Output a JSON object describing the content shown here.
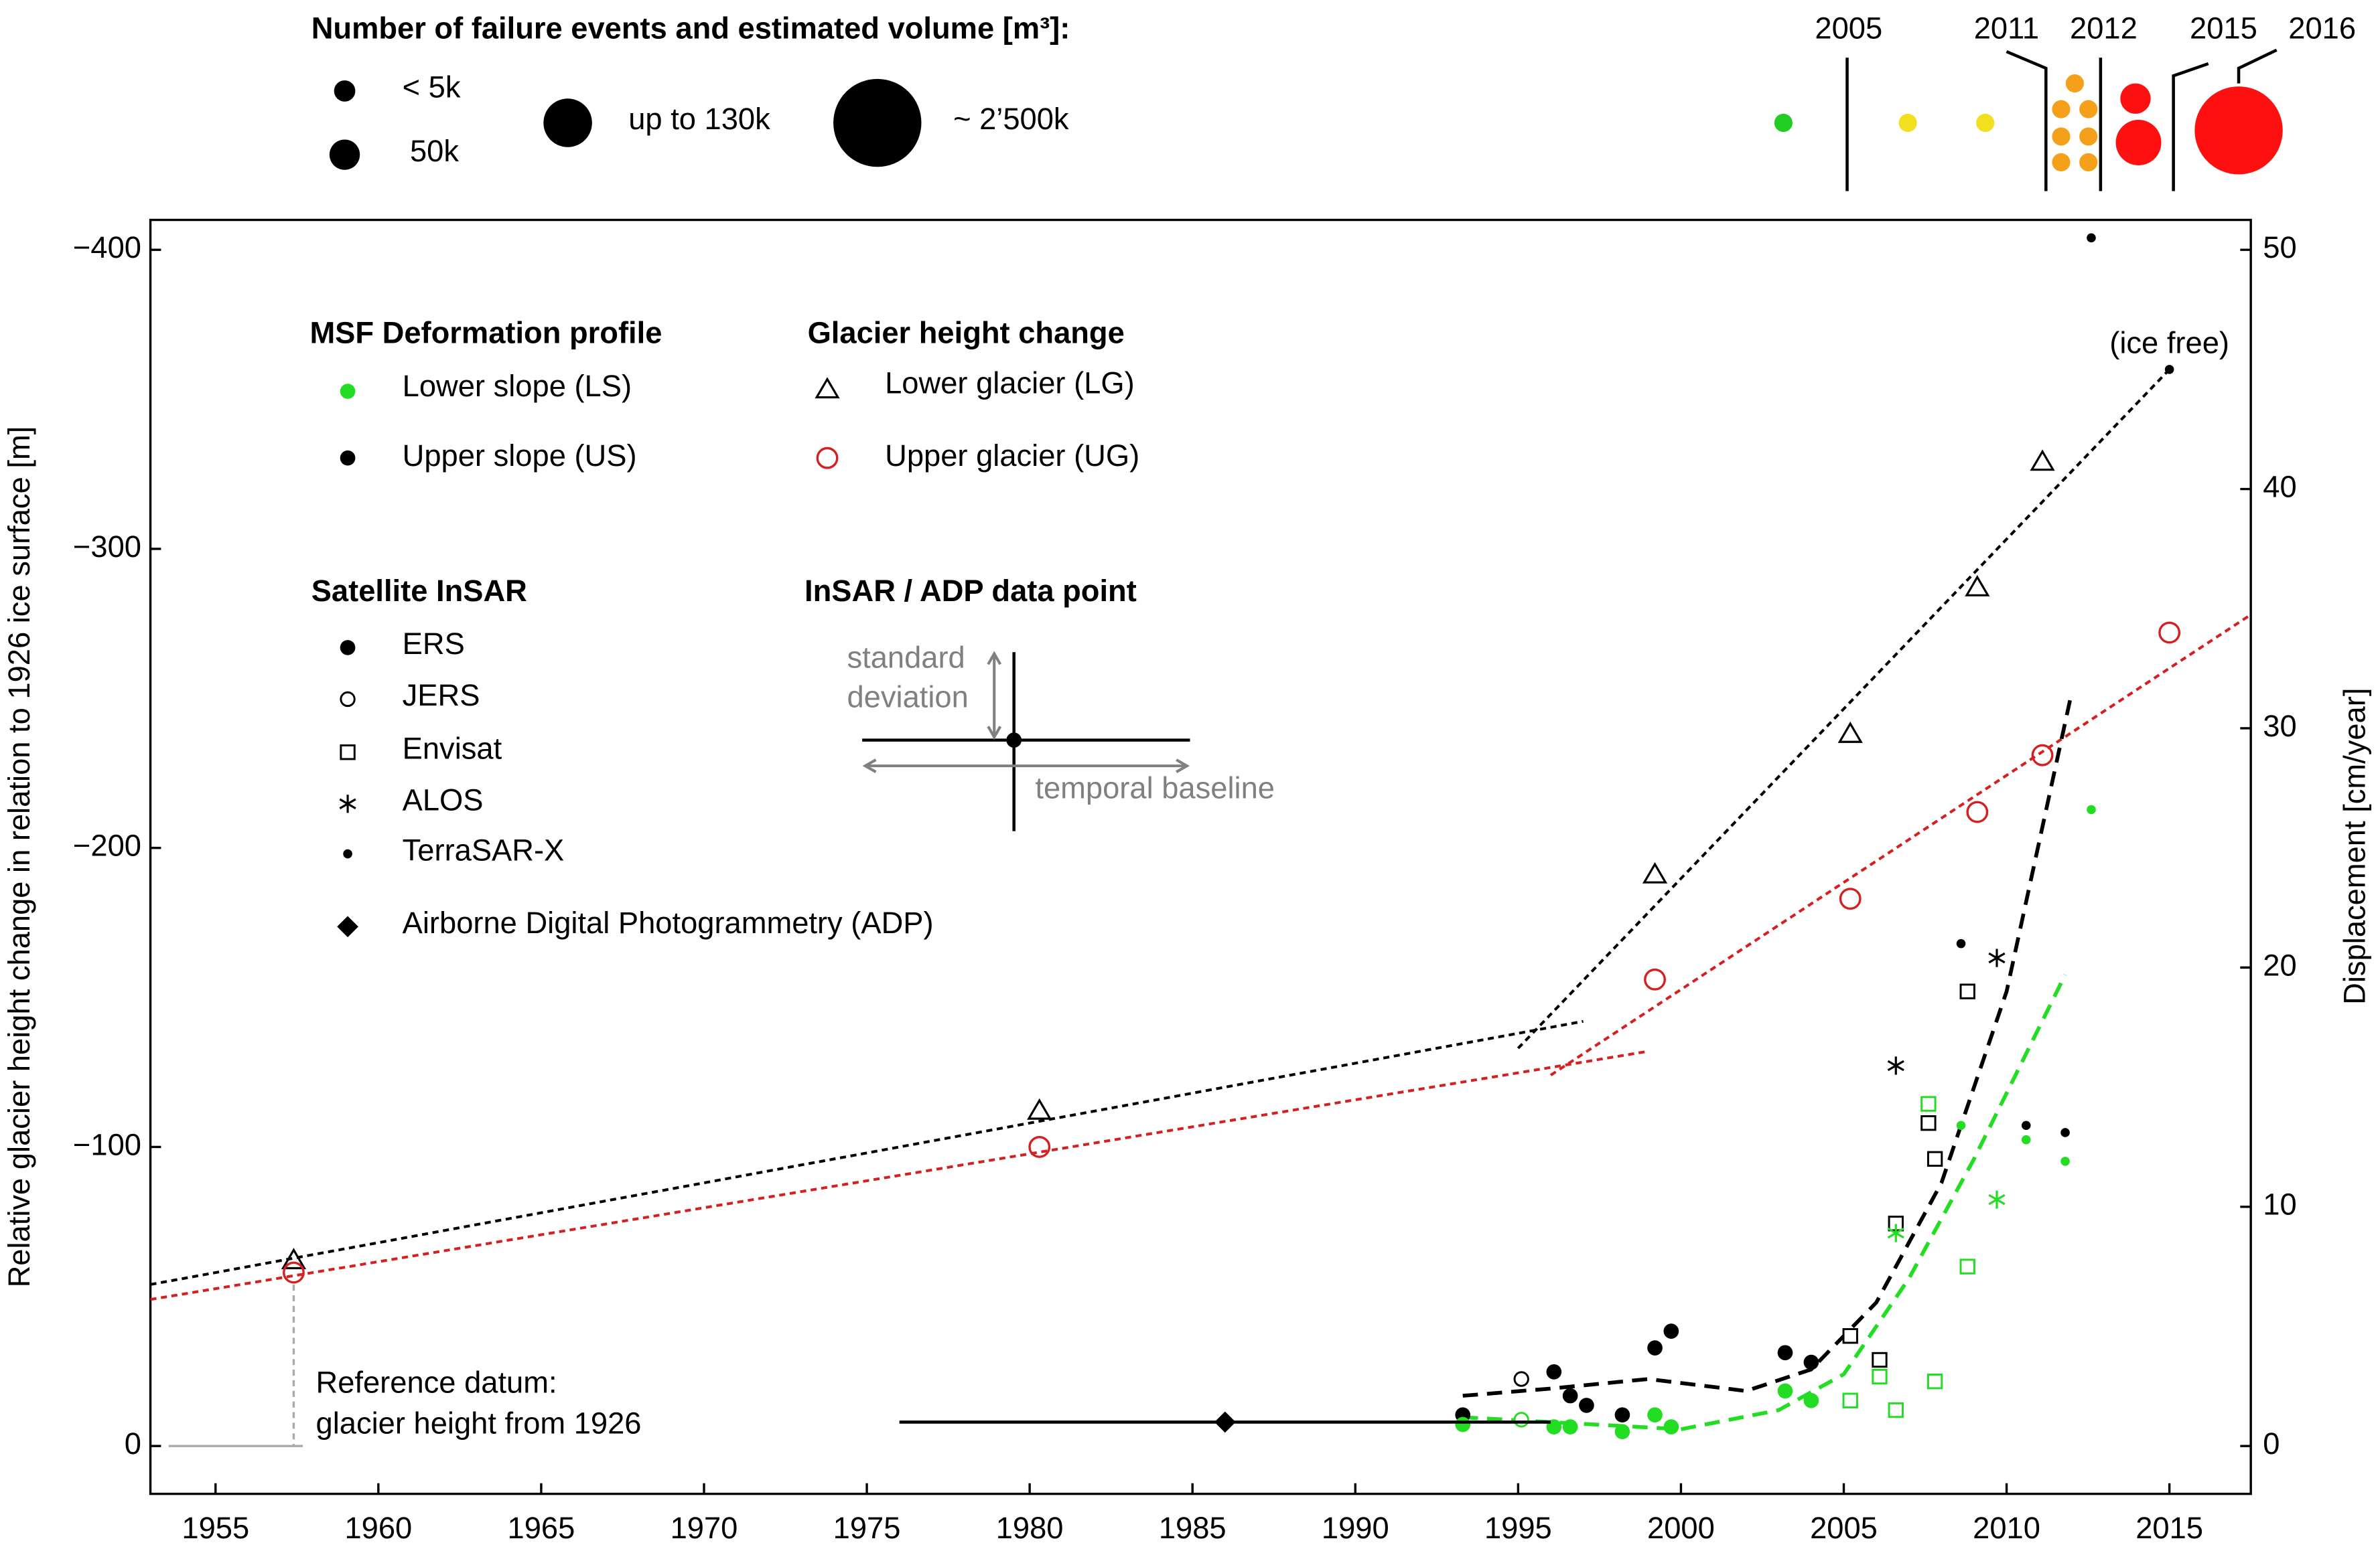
{
  "chart_data": {
    "type": "scatter",
    "ylabel": "Relative glacier height change in relation to 1926 ice surface [m]",
    "y2label": "Displacement [cm/year]",
    "xlim": [
      1953,
      2017.5
    ],
    "xticks": [
      1955,
      1960,
      1965,
      1970,
      1975,
      1980,
      1985,
      1990,
      1995,
      2000,
      2005,
      2010,
      2015
    ],
    "ylim": [
      16,
      -410
    ],
    "yticks": [
      0,
      {
        "value": -100,
        "label": "−100"
      },
      {
        "value": -200,
        "label": "−200"
      },
      {
        "value": -300,
        "label": "−300"
      },
      {
        "value": -400,
        "label": "−400"
      }
    ],
    "y2lim": [
      -2,
      51.25
    ],
    "y2ticks": [
      0,
      10,
      20,
      30,
      40,
      50
    ],
    "series": [
      {
        "marker": "triangle-open",
        "color": "#000000",
        "axis": "y",
        "x": [
          1957.4,
          1980.3,
          1999.2,
          2005.2,
          2009.1,
          2011.1
        ],
        "values": [
          -62,
          -112,
          -191,
          -238,
          -287,
          -329
        ]
      },
      {
        "marker": "circle-open-large",
        "color": "#d42020",
        "axis": "y",
        "x": [
          1957.4,
          1980.3,
          1999.2,
          2005.2,
          2009.1,
          2011.1,
          2015
        ],
        "values": [
          -58,
          -100,
          -156,
          -183,
          -212,
          -231,
          -272
        ]
      },
      {
        "marker": "dot",
        "color": "#000000",
        "axis": "y2",
        "x": [
          1993.3,
          1996.1,
          1996.6,
          1997.1,
          1998.2,
          1999.2,
          1999.7,
          2003.2,
          2004.0
        ],
        "values": [
          1.3,
          3.1,
          2.1,
          1.7,
          1.3,
          4.1,
          4.8,
          3.9,
          3.5
        ]
      },
      {
        "marker": "circle-open",
        "color": "#000000",
        "axis": "y2",
        "x": [
          1995.1
        ],
        "values": [
          2.8
        ]
      },
      {
        "marker": "square-open",
        "color": "#000000",
        "axis": "y2",
        "x": [
          2005.2,
          2006.1,
          2006.6,
          2007.6,
          2007.8,
          2008.8
        ],
        "values": [
          4.6,
          3.6,
          9.3,
          13.5,
          12.0,
          19.0
        ]
      },
      {
        "marker": "asterisk",
        "color": "#000000",
        "axis": "y2",
        "x": [
          2006.6,
          2009.7
        ],
        "values": [
          15.9,
          20.4
        ]
      },
      {
        "marker": "small-dot",
        "color": "#000000",
        "axis": "y2",
        "x": [
          2008.6,
          2010.6,
          2011.8,
          2012.6
        ],
        "values": [
          21.0,
          13.4,
          13.1,
          50.5
        ]
      },
      {
        "marker": "dot",
        "color": "#22dd22",
        "axis": "y2",
        "x": [
          1993.3,
          1996.1,
          1996.6,
          1998.2,
          1999.2,
          1999.7,
          2003.2,
          2004.0
        ],
        "values": [
          0.9,
          0.8,
          0.8,
          0.6,
          1.3,
          0.8,
          2.3,
          1.9
        ]
      },
      {
        "marker": "circle-open",
        "color": "#22dd22",
        "axis": "y2",
        "x": [
          1995.1
        ],
        "values": [
          1.1
        ]
      },
      {
        "marker": "square-open",
        "color": "#22dd22",
        "axis": "y2",
        "x": [
          2005.2,
          2006.1,
          2006.6,
          2007.6,
          2007.8,
          2008.8
        ],
        "values": [
          1.9,
          2.9,
          1.5,
          14.3,
          2.7,
          7.5
        ]
      },
      {
        "marker": "asterisk",
        "color": "#22dd22",
        "axis": "y2",
        "x": [
          2006.6,
          2009.7
        ],
        "values": [
          8.9,
          10.3
        ]
      },
      {
        "marker": "small-dot",
        "color": "#22dd22",
        "axis": "y2",
        "x": [
          2008.6,
          2010.6,
          2011.8,
          2012.6
        ],
        "values": [
          13.4,
          12.8,
          11.9,
          26.6
        ]
      },
      {
        "marker": "diamond",
        "color": "#000000",
        "axis": "y2",
        "x": [
          1986
        ],
        "values": [
          1.0
        ],
        "x_from": [
          1976
        ],
        "x_to": [
          1996
        ]
      }
    ],
    "trend_lines": [
      {
        "color": "#000000",
        "axis": "y",
        "x": [
          1953,
          1997
        ],
        "values": [
          -54,
          -142
        ]
      },
      {
        "color": "#000000",
        "axis": "y",
        "x": [
          1995,
          2015
        ],
        "values": [
          -133,
          -360
        ]
      },
      {
        "color": "#d42020",
        "axis": "y",
        "x": [
          1953,
          1999
        ],
        "values": [
          -49,
          -132
        ]
      },
      {
        "color": "#d42020",
        "axis": "y",
        "x": [
          1996,
          2017.5
        ],
        "values": [
          -124,
          -278
        ]
      },
      {
        "color": "#000000",
        "axis": "y2",
        "x": [
          1993.3,
          1996,
          1999,
          2002,
          2004,
          2006,
          2008,
          2010,
          2012
        ],
        "values": [
          2.1,
          2.4,
          2.8,
          2.3,
          3.2,
          6,
          11,
          19,
          31.5
        ]
      },
      {
        "color": "#22dd22",
        "axis": "y2",
        "x": [
          1993.3,
          1996,
          2000,
          2003,
          2005,
          2007,
          2009,
          2011.8
        ],
        "values": [
          1.2,
          1.0,
          0.7,
          1.5,
          3,
          7,
          12,
          19.7
        ]
      }
    ],
    "annotation": {
      "text": "(ice free)",
      "x": 2015,
      "y": -360
    },
    "reference": {
      "line1": "Reference datum:",
      "line2": "glacier height from 1926"
    },
    "legend": {
      "profile_title": "MSF Deformation profile",
      "profiles": [
        {
          "name": "Lower slope (LS)",
          "color": "#22dd22"
        },
        {
          "name": "Upper slope (US)",
          "color": "#000000"
        }
      ],
      "glacier_title": "Glacier height change",
      "glacier": [
        {
          "name": "Lower glacier (LG)",
          "marker": "triangle-open",
          "color": "#000000"
        },
        {
          "name": "Upper glacier (UG)",
          "marker": "circle-open-large",
          "color": "#d42020"
        }
      ],
      "sensor_title": "Satellite InSAR",
      "sensors": [
        {
          "name": "ERS",
          "marker": "dot"
        },
        {
          "name": "JERS",
          "marker": "circle-open"
        },
        {
          "name": "Envisat",
          "marker": "square-open"
        },
        {
          "name": "ALOS",
          "marker": "asterisk"
        },
        {
          "name": "TerraSAR-X",
          "marker": "small-dot"
        }
      ],
      "adp": {
        "name": "Airborne Digital Photogrammetry (ADP)",
        "marker": "diamond"
      },
      "point_title": "InSAR / ADP data point",
      "point_sd1": "standard",
      "point_sd2": "deviation",
      "point_tb": "temporal baseline"
    },
    "failure_legend": {
      "title": "Number of failure events and estimated volume [m³]:",
      "sizes": [
        "< 5k",
        "50k",
        "up to 130k",
        "~ 2’500k"
      ]
    },
    "timeline": [
      "2005",
      "2011",
      "2012",
      "2015",
      "2016"
    ]
  }
}
